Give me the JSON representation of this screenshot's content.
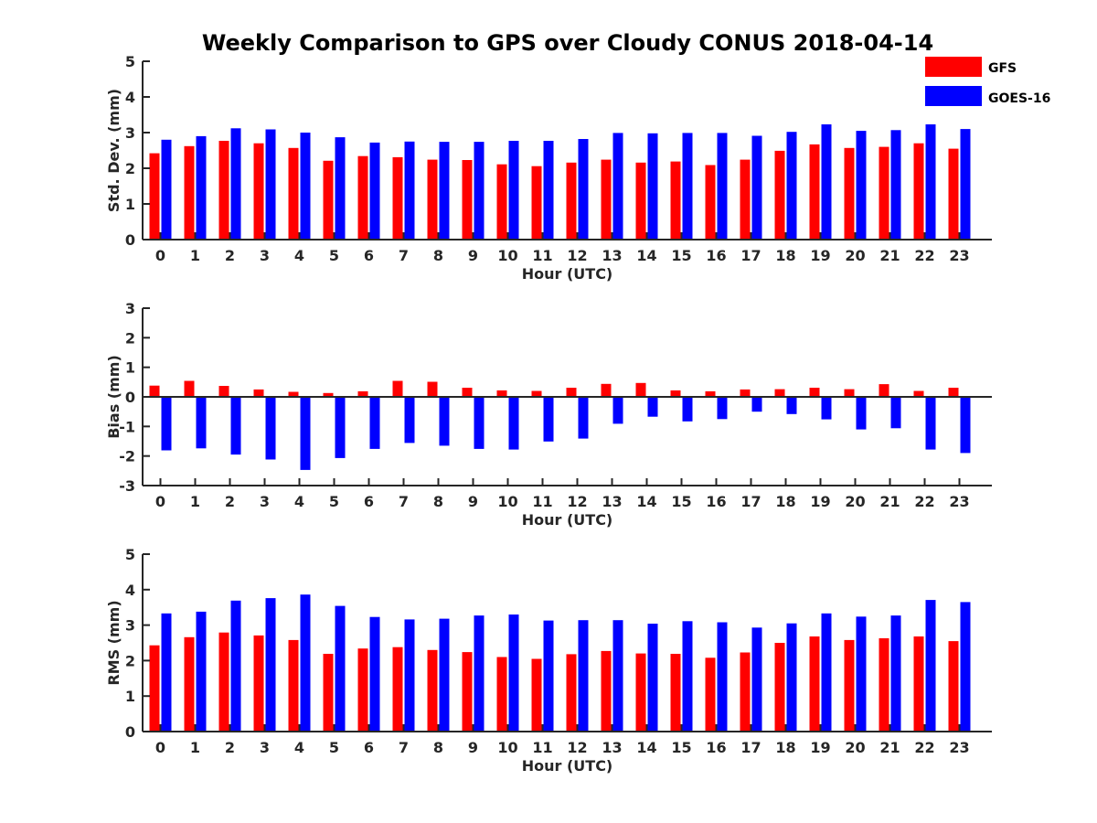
{
  "figure": {
    "title": "Weekly Comparison to GPS over Cloudy CONUS 2018-04-14"
  },
  "legend": [
    {
      "name": "GFS",
      "color": "#ff0000"
    },
    {
      "name": "GOES-16",
      "color": "#0000ff"
    }
  ],
  "chart_data": [
    {
      "type": "bar",
      "title": "Weekly Comparison to GPS over Cloudy CONUS 2018-04-14",
      "xlabel": "Hour (UTC)",
      "ylabel": "Std. Dev. (mm)",
      "ylim": [
        0,
        5
      ],
      "yticks": [
        0,
        1,
        2,
        3,
        4,
        5
      ],
      "categories": [
        "0",
        "1",
        "2",
        "3",
        "4",
        "5",
        "6",
        "7",
        "8",
        "9",
        "10",
        "11",
        "12",
        "13",
        "14",
        "15",
        "16",
        "17",
        "18",
        "19",
        "20",
        "21",
        "22",
        "23"
      ],
      "series": [
        {
          "name": "GFS",
          "color": "#ff0000",
          "values": [
            2.42,
            2.62,
            2.77,
            2.7,
            2.57,
            2.21,
            2.34,
            2.31,
            2.24,
            2.23,
            2.11,
            2.06,
            2.16,
            2.24,
            2.16,
            2.19,
            2.09,
            2.24,
            2.49,
            2.67,
            2.57,
            2.6,
            2.7,
            2.55
          ]
        },
        {
          "name": "GOES-16",
          "color": "#0000ff",
          "values": [
            2.8,
            2.9,
            3.12,
            3.09,
            3.0,
            2.87,
            2.72,
            2.75,
            2.74,
            2.74,
            2.77,
            2.77,
            2.82,
            2.99,
            2.98,
            2.99,
            2.99,
            2.91,
            3.02,
            3.23,
            3.05,
            3.07,
            3.23,
            3.1
          ]
        }
      ],
      "legend": "top-right",
      "grid": false
    },
    {
      "type": "bar",
      "xlabel": "Hour (UTC)",
      "ylabel": "Bias (mm)",
      "ylim": [
        -3,
        3
      ],
      "yticks": [
        -3,
        -2,
        -1,
        0,
        1,
        2,
        3
      ],
      "categories": [
        "0",
        "1",
        "2",
        "3",
        "4",
        "5",
        "6",
        "7",
        "8",
        "9",
        "10",
        "11",
        "12",
        "13",
        "14",
        "15",
        "16",
        "17",
        "18",
        "19",
        "20",
        "21",
        "22",
        "23"
      ],
      "series": [
        {
          "name": "GFS",
          "color": "#ff0000",
          "values": [
            0.38,
            0.54,
            0.37,
            0.25,
            0.17,
            0.13,
            0.19,
            0.54,
            0.51,
            0.31,
            0.22,
            0.2,
            0.31,
            0.44,
            0.47,
            0.22,
            0.19,
            0.25,
            0.26,
            0.31,
            0.26,
            0.43,
            0.2,
            0.31
          ]
        },
        {
          "name": "GOES-16",
          "color": "#0000ff",
          "values": [
            -1.81,
            -1.74,
            -1.95,
            -2.12,
            -2.47,
            -2.07,
            -1.76,
            -1.56,
            -1.65,
            -1.76,
            -1.78,
            -1.51,
            -1.41,
            -0.91,
            -0.67,
            -0.83,
            -0.75,
            -0.5,
            -0.58,
            -0.76,
            -1.1,
            -1.06,
            -1.78,
            -1.9
          ]
        }
      ],
      "grid": false
    },
    {
      "type": "bar",
      "xlabel": "Hour (UTC)",
      "ylabel": "RMS (mm)",
      "ylim": [
        0,
        5
      ],
      "yticks": [
        0,
        1,
        2,
        3,
        4,
        5
      ],
      "categories": [
        "0",
        "1",
        "2",
        "3",
        "4",
        "5",
        "6",
        "7",
        "8",
        "9",
        "10",
        "11",
        "12",
        "13",
        "14",
        "15",
        "16",
        "17",
        "18",
        "19",
        "20",
        "21",
        "22",
        "23"
      ],
      "series": [
        {
          "name": "GFS",
          "color": "#ff0000",
          "values": [
            2.43,
            2.66,
            2.79,
            2.71,
            2.58,
            2.19,
            2.34,
            2.38,
            2.3,
            2.24,
            2.1,
            2.05,
            2.18,
            2.27,
            2.2,
            2.19,
            2.08,
            2.23,
            2.5,
            2.68,
            2.58,
            2.63,
            2.68,
            2.55
          ]
        },
        {
          "name": "GOES-16",
          "color": "#0000ff",
          "values": [
            3.33,
            3.38,
            3.69,
            3.76,
            3.86,
            3.54,
            3.23,
            3.16,
            3.18,
            3.27,
            3.3,
            3.13,
            3.14,
            3.14,
            3.04,
            3.11,
            3.08,
            2.93,
            3.05,
            3.33,
            3.24,
            3.27,
            3.71,
            3.65
          ]
        }
      ],
      "grid": false
    }
  ]
}
